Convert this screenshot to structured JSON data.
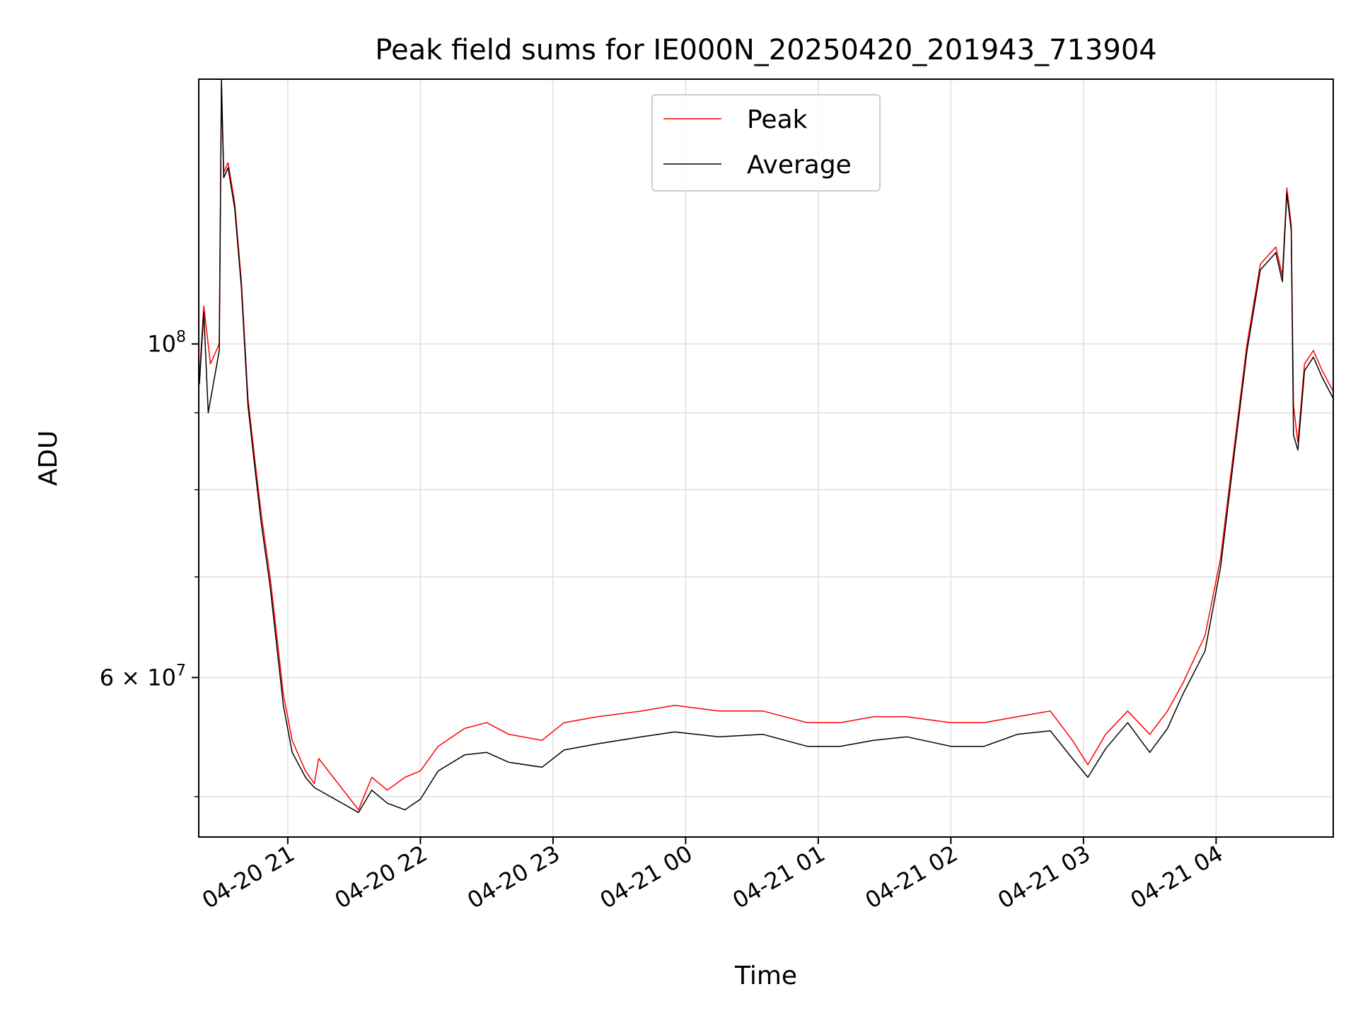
{
  "chart_data": {
    "type": "line",
    "title": "Peak field sums for IE000N_20250420_201943_713904",
    "xlabel": "Time",
    "ylabel": "ADU",
    "x_scale": "time",
    "y_scale": "log",
    "xlim": [
      "2025-04-20 20:19:43",
      "2025-04-21 04:53:00"
    ],
    "ylim": [
      47000000,
      150000000
    ],
    "x_ticks": [
      {
        "value": "2025-04-20 21:00",
        "label": "04-20 21"
      },
      {
        "value": "2025-04-20 22:00",
        "label": "04-20 22"
      },
      {
        "value": "2025-04-20 23:00",
        "label": "04-20 23"
      },
      {
        "value": "2025-04-21 00:00",
        "label": "04-21 00"
      },
      {
        "value": "2025-04-21 01:00",
        "label": "04-21 01"
      },
      {
        "value": "2025-04-21 02:00",
        "label": "04-21 02"
      },
      {
        "value": "2025-04-21 03:00",
        "label": "04-21 03"
      },
      {
        "value": "2025-04-21 04:00",
        "label": "04-21 04"
      }
    ],
    "y_ticks_major": [
      {
        "value": 60000000,
        "base": "6 × 10",
        "exp": "7"
      },
      {
        "value": 100000000,
        "base": "10",
        "exp": "8"
      }
    ],
    "y_ticks_minor": [
      50000000,
      70000000,
      80000000,
      90000000
    ],
    "grid": true,
    "legend_position": "top-center",
    "series": [
      {
        "name": "Peak",
        "color": "#ff0000",
        "points": [
          [
            "2025-04-20 20:20",
            95000000
          ],
          [
            "2025-04-20 20:22",
            106000000
          ],
          [
            "2025-04-20 20:25",
            97000000
          ],
          [
            "2025-04-20 20:29",
            100000000
          ],
          [
            "2025-04-20 20:30",
            148000000
          ],
          [
            "2025-04-20 20:31",
            130000000
          ],
          [
            "2025-04-20 20:33",
            132000000
          ],
          [
            "2025-04-20 20:36",
            124000000
          ],
          [
            "2025-04-20 20:39",
            110000000
          ],
          [
            "2025-04-20 20:42",
            92000000
          ],
          [
            "2025-04-20 20:45",
            84000000
          ],
          [
            "2025-04-20 20:48",
            77000000
          ],
          [
            "2025-04-20 20:52",
            70000000
          ],
          [
            "2025-04-20 20:55",
            64000000
          ],
          [
            "2025-04-20 20:58",
            58500000
          ],
          [
            "2025-04-20 21:02",
            54500000
          ],
          [
            "2025-04-20 21:08",
            52000000
          ],
          [
            "2025-04-20 21:12",
            51000000
          ],
          [
            "2025-04-20 21:14",
            53000000
          ],
          [
            "2025-04-20 21:32",
            49000000
          ],
          [
            "2025-04-20 21:38",
            51500000
          ],
          [
            "2025-04-20 21:45",
            50500000
          ],
          [
            "2025-04-20 21:53",
            51500000
          ],
          [
            "2025-04-20 22:00",
            52000000
          ],
          [
            "2025-04-20 22:08",
            54000000
          ],
          [
            "2025-04-20 22:20",
            55500000
          ],
          [
            "2025-04-20 22:30",
            56000000
          ],
          [
            "2025-04-20 22:40",
            55000000
          ],
          [
            "2025-04-20 22:55",
            54500000
          ],
          [
            "2025-04-20 23:05",
            56000000
          ],
          [
            "2025-04-20 23:20",
            56500000
          ],
          [
            "2025-04-20 23:40",
            57000000
          ],
          [
            "2025-04-20 23:55",
            57500000
          ],
          [
            "2025-04-21 00:15",
            57000000
          ],
          [
            "2025-04-21 00:35",
            57000000
          ],
          [
            "2025-04-21 00:55",
            56000000
          ],
          [
            "2025-04-21 01:10",
            56000000
          ],
          [
            "2025-04-21 01:25",
            56500000
          ],
          [
            "2025-04-21 01:40",
            56500000
          ],
          [
            "2025-04-21 02:00",
            56000000
          ],
          [
            "2025-04-21 02:15",
            56000000
          ],
          [
            "2025-04-21 02:30",
            56500000
          ],
          [
            "2025-04-21 02:45",
            57000000
          ],
          [
            "2025-04-21 02:55",
            54500000
          ],
          [
            "2025-04-21 03:02",
            52500000
          ],
          [
            "2025-04-21 03:10",
            55000000
          ],
          [
            "2025-04-21 03:20",
            57000000
          ],
          [
            "2025-04-21 03:30",
            55000000
          ],
          [
            "2025-04-21 03:38",
            57000000
          ],
          [
            "2025-04-21 03:45",
            59500000
          ],
          [
            "2025-04-21 03:55",
            64000000
          ],
          [
            "2025-04-21 04:02",
            72000000
          ],
          [
            "2025-04-21 04:08",
            85000000
          ],
          [
            "2025-04-21 04:14",
            100000000
          ],
          [
            "2025-04-21 04:20",
            113000000
          ],
          [
            "2025-04-21 04:27",
            116000000
          ],
          [
            "2025-04-21 04:30",
            111000000
          ],
          [
            "2025-04-21 04:32",
            127000000
          ],
          [
            "2025-04-21 04:34",
            120000000
          ],
          [
            "2025-04-21 04:35",
            91000000
          ],
          [
            "2025-04-21 04:37",
            86000000
          ],
          [
            "2025-04-21 04:40",
            97000000
          ],
          [
            "2025-04-21 04:44",
            99000000
          ],
          [
            "2025-04-21 04:48",
            96000000
          ],
          [
            "2025-04-21 04:53",
            93000000
          ]
        ]
      },
      {
        "name": "Average",
        "color": "#000000",
        "points": [
          [
            "2025-04-20 20:20",
            94000000
          ],
          [
            "2025-04-20 20:22",
            105000000
          ],
          [
            "2025-04-20 20:24",
            90000000
          ],
          [
            "2025-04-20 20:29",
            99000000
          ],
          [
            "2025-04-20 20:30",
            150000000
          ],
          [
            "2025-04-20 20:31",
            129000000
          ],
          [
            "2025-04-20 20:33",
            131000000
          ],
          [
            "2025-04-20 20:36",
            123000000
          ],
          [
            "2025-04-20 20:39",
            109000000
          ],
          [
            "2025-04-20 20:42",
            91000000
          ],
          [
            "2025-04-20 20:45",
            83000000
          ],
          [
            "2025-04-20 20:48",
            76000000
          ],
          [
            "2025-04-20 20:52",
            69000000
          ],
          [
            "2025-04-20 20:55",
            63000000
          ],
          [
            "2025-04-20 20:58",
            57500000
          ],
          [
            "2025-04-20 21:02",
            53500000
          ],
          [
            "2025-04-20 21:08",
            51500000
          ],
          [
            "2025-04-20 21:12",
            50700000
          ],
          [
            "2025-04-20 21:32",
            48800000
          ],
          [
            "2025-04-20 21:38",
            50500000
          ],
          [
            "2025-04-20 21:45",
            49500000
          ],
          [
            "2025-04-20 21:53",
            49000000
          ],
          [
            "2025-04-20 22:00",
            49800000
          ],
          [
            "2025-04-20 22:08",
            52000000
          ],
          [
            "2025-04-20 22:20",
            53300000
          ],
          [
            "2025-04-20 22:30",
            53500000
          ],
          [
            "2025-04-20 22:40",
            52700000
          ],
          [
            "2025-04-20 22:55",
            52300000
          ],
          [
            "2025-04-20 23:05",
            53700000
          ],
          [
            "2025-04-20 23:20",
            54200000
          ],
          [
            "2025-04-20 23:40",
            54800000
          ],
          [
            "2025-04-20 23:55",
            55200000
          ],
          [
            "2025-04-21 00:15",
            54800000
          ],
          [
            "2025-04-21 00:35",
            55000000
          ],
          [
            "2025-04-21 00:55",
            54000000
          ],
          [
            "2025-04-21 01:10",
            54000000
          ],
          [
            "2025-04-21 01:25",
            54500000
          ],
          [
            "2025-04-21 01:40",
            54800000
          ],
          [
            "2025-04-21 02:00",
            54000000
          ],
          [
            "2025-04-21 02:15",
            54000000
          ],
          [
            "2025-04-21 02:30",
            55000000
          ],
          [
            "2025-04-21 02:45",
            55300000
          ],
          [
            "2025-04-21 02:55",
            53000000
          ],
          [
            "2025-04-21 03:02",
            51500000
          ],
          [
            "2025-04-21 03:10",
            53800000
          ],
          [
            "2025-04-21 03:20",
            56000000
          ],
          [
            "2025-04-21 03:30",
            53500000
          ],
          [
            "2025-04-21 03:38",
            55500000
          ],
          [
            "2025-04-21 03:45",
            58500000
          ],
          [
            "2025-04-21 03:55",
            62500000
          ],
          [
            "2025-04-21 04:02",
            71000000
          ],
          [
            "2025-04-21 04:08",
            84000000
          ],
          [
            "2025-04-21 04:14",
            99000000
          ],
          [
            "2025-04-21 04:20",
            112000000
          ],
          [
            "2025-04-21 04:27",
            115000000
          ],
          [
            "2025-04-21 04:30",
            110000000
          ],
          [
            "2025-04-21 04:32",
            126000000
          ],
          [
            "2025-04-21 04:34",
            119000000
          ],
          [
            "2025-04-21 04:35",
            87000000
          ],
          [
            "2025-04-21 04:37",
            85000000
          ],
          [
            "2025-04-21 04:40",
            96000000
          ],
          [
            "2025-04-21 04:44",
            98000000
          ],
          [
            "2025-04-21 04:48",
            95000000
          ],
          [
            "2025-04-21 04:53",
            92000000
          ]
        ]
      }
    ]
  }
}
